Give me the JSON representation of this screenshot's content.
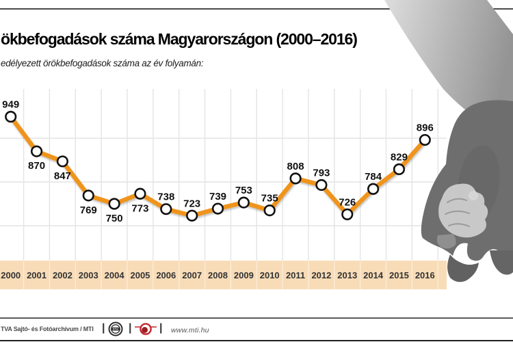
{
  "header": {
    "title": "ökbefogadások száma Magyarországon (2000–2016)",
    "subtitle": "edélyezett örökbefogadások száma az év folyamán:"
  },
  "chart_data": {
    "type": "line",
    "title": "ökbefogadások száma Magyarországon (2000–2016)",
    "subtitle": "edélyezett örökbefogadások száma az év folyamán:",
    "categories": [
      "2000",
      "2001",
      "2002",
      "2003",
      "2004",
      "2005",
      "2006",
      "2007",
      "2008",
      "2009",
      "2010",
      "2011",
      "2012",
      "2013",
      "2014",
      "2015",
      "2016"
    ],
    "values": [
      949,
      870,
      847,
      769,
      750,
      773,
      738,
      723,
      739,
      753,
      735,
      808,
      793,
      726,
      784,
      829,
      896
    ],
    "ylim": [
      620,
      980
    ],
    "y_gridlines": [
      900,
      800,
      700
    ],
    "grid": true,
    "legend": false,
    "line_color": "#ef941f",
    "marker_fill": "#ffffff",
    "marker_stroke": "#111111",
    "grid_color": "#e4e4e4",
    "axis_band_color": "#f8dcb8",
    "label_positions": [
      "above",
      "below",
      "below",
      "below",
      "below",
      "below",
      "above",
      "above",
      "above",
      "above",
      "above",
      "above",
      "above",
      "above",
      "above",
      "above",
      "above"
    ]
  },
  "illustration": {
    "name": "adult-child-holding-hands-photo"
  },
  "footer": {
    "credit": "TVA Sajtó- és Fotóarchívum / MTI",
    "separator": "|",
    "logos": [
      "mtva-logo",
      "mti-logo"
    ],
    "url": "www.mti.hu"
  }
}
